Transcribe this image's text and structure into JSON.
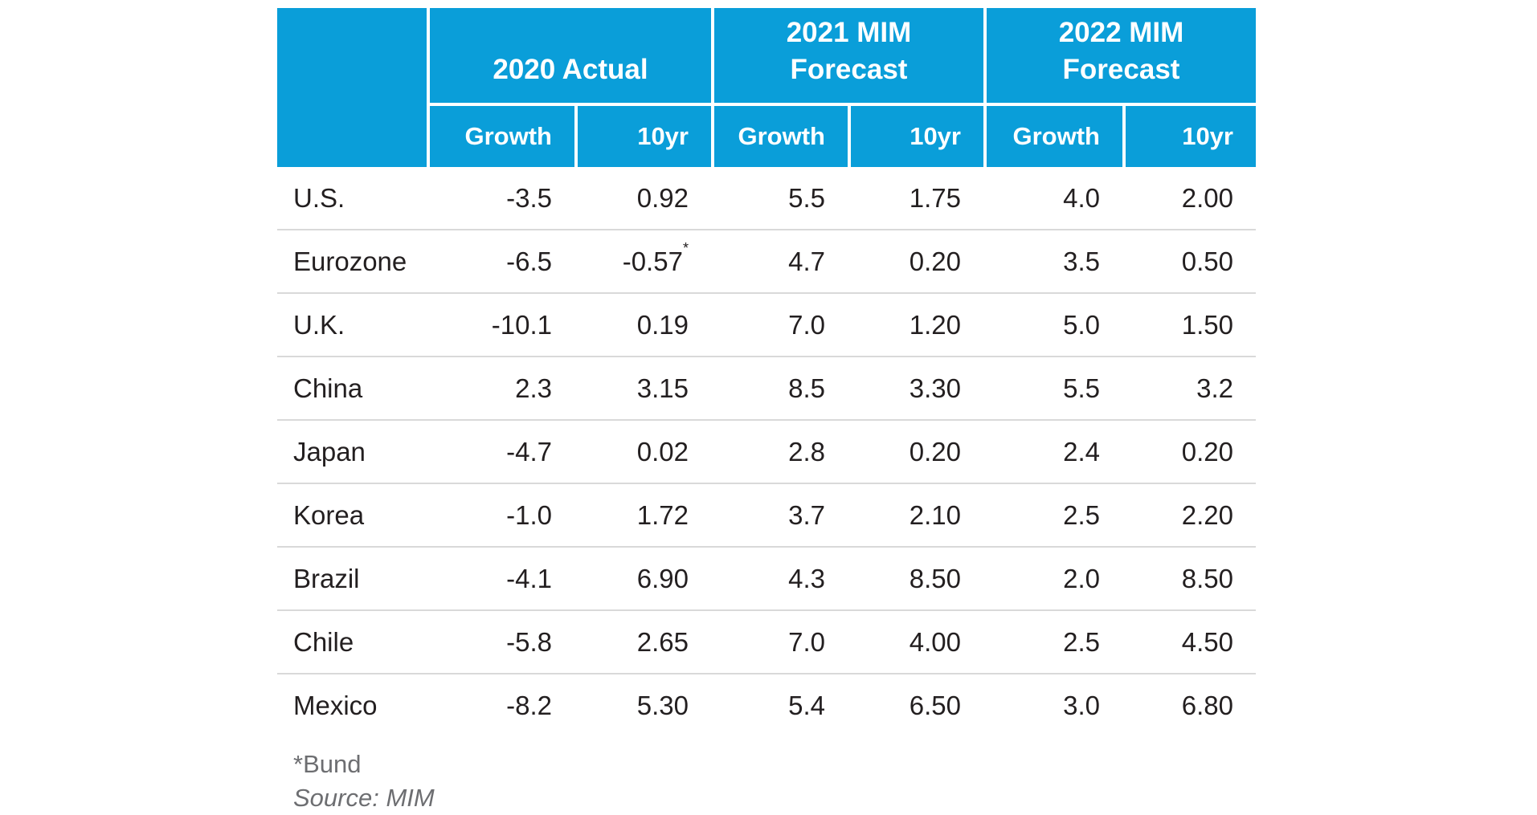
{
  "chart_data": {
    "type": "table",
    "column_groups": [
      "2020 Actual",
      "2021 MIM Forecast",
      "2022 MIM Forecast"
    ],
    "columns": [
      "Growth",
      "10yr",
      "Growth",
      "10yr",
      "Growth",
      "10yr"
    ],
    "rows": [
      {
        "label": "U.S.",
        "values": [
          "-3.5",
          "0.92",
          "5.5",
          "1.75",
          "4.0",
          "2.00"
        ]
      },
      {
        "label": "Eurozone",
        "values": [
          "-6.5",
          "-0.57*",
          "4.7",
          "0.20",
          "3.5",
          "0.50"
        ]
      },
      {
        "label": "U.K.",
        "values": [
          "-10.1",
          "0.19",
          "7.0",
          "1.20",
          "5.0",
          "1.50"
        ]
      },
      {
        "label": "China",
        "values": [
          "2.3",
          "3.15",
          "8.5",
          "3.30",
          "5.5",
          "3.2"
        ]
      },
      {
        "label": "Japan",
        "values": [
          "-4.7",
          "0.02",
          "2.8",
          "0.20",
          "2.4",
          "0.20"
        ]
      },
      {
        "label": "Korea",
        "values": [
          "-1.0",
          "1.72",
          "3.7",
          "2.10",
          "2.5",
          "2.20"
        ]
      },
      {
        "label": "Brazil",
        "values": [
          "-4.1",
          "6.90",
          "4.3",
          "8.50",
          "2.0",
          "8.50"
        ]
      },
      {
        "label": "Chile",
        "values": [
          "-5.8",
          "2.65",
          "7.0",
          "4.00",
          "2.5",
          "4.50"
        ]
      },
      {
        "label": "Mexico",
        "values": [
          "-8.2",
          "5.30",
          "5.4",
          "6.50",
          "3.0",
          "6.80"
        ]
      }
    ],
    "footnotes": [
      "*Bund",
      "Source: MIM"
    ]
  },
  "header": {
    "groups": [
      {
        "lines": [
          "2020 Actual"
        ]
      },
      {
        "lines": [
          "2021 MIM",
          "Forecast"
        ]
      },
      {
        "lines": [
          "2022 MIM",
          "Forecast"
        ]
      }
    ],
    "sub": [
      "Growth",
      "10yr",
      "Growth",
      "10yr",
      "Growth",
      "10yr"
    ]
  },
  "footer": {
    "footnote": "*Bund",
    "source": "Source: MIM"
  },
  "colors": {
    "header_blue": "#0a9ed9",
    "row_separator": "#d9d9d9",
    "text": "#231f20",
    "muted_text": "#6d6e71"
  }
}
